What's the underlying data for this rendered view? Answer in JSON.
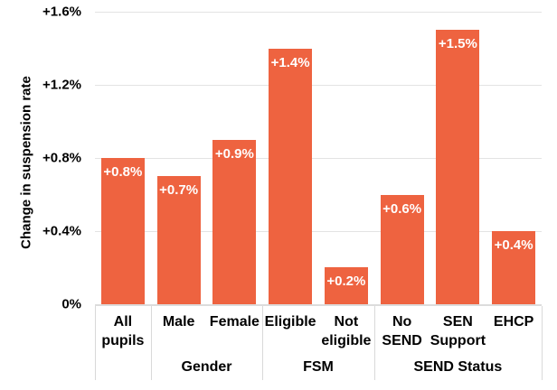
{
  "chart_data": {
    "type": "bar",
    "title": "",
    "ylabel": "Change in suspension rate",
    "xlabel": "",
    "ylim": [
      0,
      1.6
    ],
    "ytick_values": [
      0,
      0.4,
      0.8,
      1.2,
      1.6
    ],
    "ytick_labels": [
      "0%",
      "+0.4%",
      "+0.8%",
      "+1.2%",
      "+1.6%"
    ],
    "grid": true,
    "legend_position": "none",
    "bar_color": "#EE6340",
    "data_label_color": "#FFFFFF",
    "categories": [
      "All pupils",
      "Male",
      "Female",
      "Eligible",
      "Not eligible",
      "No SEND",
      "SEN Support",
      "EHCP"
    ],
    "category_label_lines": [
      [
        "All",
        "pupils"
      ],
      [
        "Male"
      ],
      [
        "Female"
      ],
      [
        "Eligible"
      ],
      [
        "Not",
        "eligible"
      ],
      [
        "No",
        "SEND"
      ],
      [
        "SEN",
        "Support"
      ],
      [
        "EHCP"
      ]
    ],
    "values": [
      0.8,
      0.7,
      0.9,
      1.4,
      0.2,
      0.6,
      1.5,
      0.4
    ],
    "data_labels": [
      "+0.8%",
      "+0.7%",
      "+0.9%",
      "+1.4%",
      "+0.2%",
      "+0.6%",
      "+1.5%",
      "+0.4%"
    ],
    "groups": [
      {
        "label": "Gender",
        "start": 1,
        "end": 2
      },
      {
        "label": "FSM",
        "start": 3,
        "end": 4
      },
      {
        "label": "SEND Status",
        "start": 5,
        "end": 7
      }
    ],
    "group_boundaries": [
      0,
      1,
      3,
      5,
      8
    ]
  }
}
